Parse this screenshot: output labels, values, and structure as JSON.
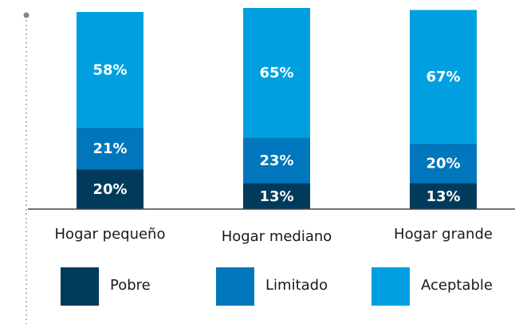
{
  "chart_data": {
    "type": "stacked_bar",
    "categories": [
      "Hogar pequeño",
      "Hogar mediano",
      "Hogar grande"
    ],
    "series": [
      {
        "name": "Pobre",
        "color": "#003b5c",
        "values": [
          20,
          13,
          13
        ],
        "value_labels": [
          "20%",
          "13%",
          "13%"
        ]
      },
      {
        "name": "Limitado",
        "color": "#0076bc",
        "values": [
          21,
          23,
          20
        ],
        "value_labels": [
          "21%",
          "23%",
          "20%"
        ]
      },
      {
        "name": "Aceptable",
        "color": "#00a0e0",
        "values": [
          58,
          65,
          67
        ],
        "value_labels": [
          "58%",
          "65%",
          "67%"
        ]
      }
    ]
  }
}
